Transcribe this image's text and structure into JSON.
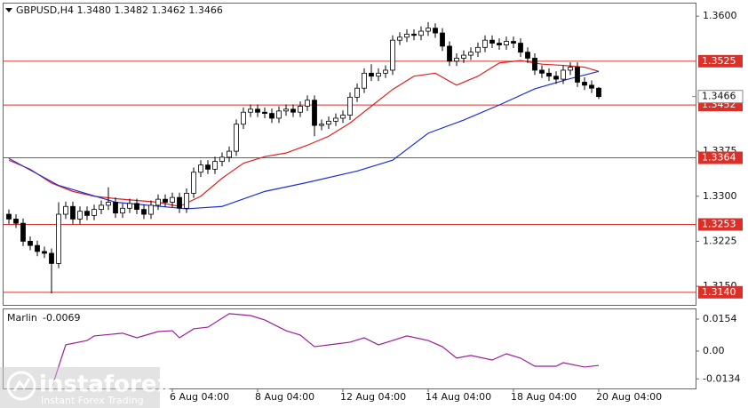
{
  "chart_data": [
    {
      "type": "candlestick",
      "title": "GBPUSD,H4  1.3480 1.3482 1.3462 1.3466",
      "categories": [
        null,
        null,
        null,
        null,
        null,
        null,
        null,
        null,
        null,
        null,
        null,
        null,
        null,
        null,
        null,
        null,
        null,
        null,
        null,
        null,
        null,
        null,
        null,
        "6 Aug 04:00",
        null,
        null,
        null,
        null,
        null,
        null,
        null,
        null,
        null,
        null,
        null,
        "8 Aug 04:00",
        null,
        null,
        null,
        null,
        null,
        null,
        null,
        null,
        null,
        null,
        null,
        "12 Aug 04:00",
        null,
        null,
        null,
        null,
        null,
        null,
        null,
        null,
        null,
        null,
        null,
        "14 Aug 04:00",
        null,
        null,
        null,
        null,
        null,
        null,
        null,
        null,
        null,
        null,
        null,
        "18 Aug 04:00",
        null,
        null,
        null,
        null,
        null,
        null,
        null,
        null,
        null,
        null,
        null,
        "20 Aug 04:00"
      ],
      "open": [
        1.327,
        1.3262,
        1.3255,
        1.3225,
        1.3218,
        1.3208,
        1.3205,
        1.3188,
        1.327,
        1.3283,
        1.3262,
        1.3275,
        1.3268,
        1.3278,
        1.3285,
        1.329,
        1.3272,
        1.328,
        1.3288,
        1.3278,
        1.327,
        1.3285,
        1.3295,
        1.329,
        1.3298,
        1.328,
        1.3305,
        1.334,
        1.3352,
        1.3345,
        1.3358,
        1.3365,
        1.3375,
        1.342,
        1.344,
        1.3445,
        1.344,
        1.3438,
        1.343,
        1.3442,
        1.3445,
        1.344,
        1.345,
        1.346,
        1.3418,
        1.342,
        1.3425,
        1.343,
        1.3435,
        1.3465,
        1.348,
        1.3505,
        1.35,
        1.3505,
        1.351,
        1.356,
        1.3565,
        1.357,
        1.3568,
        1.3575,
        1.358,
        1.3572,
        1.355,
        1.3525,
        1.353,
        1.3535,
        1.354,
        1.3548,
        1.356,
        1.3555,
        1.3552,
        1.3558,
        1.3555,
        1.354,
        1.353,
        1.351,
        1.3505,
        1.35,
        1.3495,
        1.351,
        1.3515,
        1.349,
        1.3485,
        1.348
      ],
      "high": [
        1.3278,
        1.327,
        1.3263,
        1.3233,
        1.3226,
        1.3216,
        1.3213,
        1.329,
        1.3291,
        1.3291,
        1.3283,
        1.3283,
        1.3286,
        1.3293,
        1.3315,
        1.3298,
        1.3288,
        1.3296,
        1.3296,
        1.3286,
        1.3293,
        1.3303,
        1.3303,
        1.3306,
        1.3306,
        1.3313,
        1.3348,
        1.336,
        1.336,
        1.3366,
        1.3373,
        1.3383,
        1.3428,
        1.3448,
        1.3453,
        1.3453,
        1.3448,
        1.3446,
        1.345,
        1.3453,
        1.3453,
        1.3458,
        1.3468,
        1.3468,
        1.3428,
        1.3433,
        1.3438,
        1.3443,
        1.3473,
        1.3488,
        1.3513,
        1.352,
        1.3513,
        1.3518,
        1.3568,
        1.3573,
        1.3578,
        1.3578,
        1.3583,
        1.359,
        1.3588,
        1.358,
        1.3558,
        1.3538,
        1.3543,
        1.3548,
        1.3556,
        1.3568,
        1.3568,
        1.3563,
        1.3566,
        1.3566,
        1.3563,
        1.3548,
        1.3538,
        1.3518,
        1.3513,
        1.3508,
        1.3518,
        1.3523,
        1.3523,
        1.3498,
        1.3493,
        1.3482
      ],
      "low": [
        1.3254,
        1.3247,
        1.3217,
        1.321,
        1.32,
        1.3197,
        1.3138,
        1.318,
        1.3262,
        1.3254,
        1.3254,
        1.326,
        1.326,
        1.327,
        1.3277,
        1.3264,
        1.3264,
        1.3272,
        1.327,
        1.3262,
        1.3262,
        1.3277,
        1.3282,
        1.3282,
        1.3272,
        1.3272,
        1.3297,
        1.3332,
        1.3337,
        1.3337,
        1.335,
        1.3357,
        1.3367,
        1.3412,
        1.3432,
        1.3432,
        1.343,
        1.3422,
        1.3422,
        1.3434,
        1.3432,
        1.3432,
        1.3442,
        1.34,
        1.341,
        1.3412,
        1.3417,
        1.3422,
        1.3427,
        1.3457,
        1.3472,
        1.3492,
        1.3492,
        1.3497,
        1.3502,
        1.3552,
        1.3557,
        1.356,
        1.356,
        1.3567,
        1.3564,
        1.3542,
        1.3517,
        1.3517,
        1.3522,
        1.3527,
        1.3532,
        1.354,
        1.3547,
        1.3544,
        1.3544,
        1.3547,
        1.3532,
        1.3522,
        1.3502,
        1.3497,
        1.3492,
        1.3487,
        1.3487,
        1.3502,
        1.3482,
        1.3477,
        1.3472,
        1.3462
      ],
      "close": [
        1.3262,
        1.3255,
        1.3225,
        1.3218,
        1.3208,
        1.3205,
        1.3188,
        1.327,
        1.3283,
        1.3262,
        1.3275,
        1.3268,
        1.3278,
        1.3285,
        1.329,
        1.3272,
        1.328,
        1.3288,
        1.3278,
        1.327,
        1.3285,
        1.3295,
        1.329,
        1.3298,
        1.328,
        1.3305,
        1.334,
        1.3352,
        1.3345,
        1.3358,
        1.3365,
        1.3375,
        1.342,
        1.344,
        1.3445,
        1.344,
        1.3438,
        1.343,
        1.3442,
        1.3445,
        1.344,
        1.345,
        1.346,
        1.3418,
        1.342,
        1.3425,
        1.343,
        1.3435,
        1.3465,
        1.348,
        1.3505,
        1.35,
        1.3505,
        1.351,
        1.356,
        1.3565,
        1.357,
        1.3568,
        1.3575,
        1.358,
        1.3572,
        1.355,
        1.3525,
        1.353,
        1.3535,
        1.354,
        1.3548,
        1.356,
        1.3555,
        1.3552,
        1.3558,
        1.3555,
        1.354,
        1.353,
        1.351,
        1.3505,
        1.35,
        1.3495,
        1.351,
        1.3515,
        1.349,
        1.3485,
        1.348,
        1.3466
      ],
      "up_color": "#ffffff",
      "down_color": "#000000",
      "edge_color": "#000000",
      "ylim": [
        1.3119,
        1.3621
      ],
      "yticks": [
        {
          "value": 1.36,
          "label": "1.3600"
        },
        1.3375,
        {
          "value": 1.33,
          "label": "1.3300"
        },
        1.3225,
        {
          "value": 1.315,
          "label": "1.3150"
        }
      ],
      "series": [
        {
          "color": "#e0201c",
          "x": [
            0,
            3,
            6,
            9,
            12,
            15,
            18,
            21,
            24,
            27,
            30,
            33,
            36,
            39,
            42,
            45,
            48,
            51,
            54,
            57,
            60,
            63,
            66,
            69,
            72,
            75,
            78,
            81,
            83
          ],
          "values": [
            1.336,
            1.3345,
            1.3322,
            1.3308,
            1.33,
            1.3296,
            1.3293,
            1.329,
            1.3283,
            1.33,
            1.333,
            1.3355,
            1.3366,
            1.3372,
            1.3385,
            1.34,
            1.3422,
            1.345,
            1.3478,
            1.35,
            1.3505,
            1.3485,
            1.35,
            1.3522,
            1.3526,
            1.352,
            1.3518,
            1.3515,
            1.3508
          ]
        },
        {
          "color": "#1f2fd6",
          "x": [
            0,
            7,
            15,
            25,
            30,
            36,
            42,
            49,
            54,
            59,
            64,
            69,
            74,
            79,
            83
          ],
          "values": [
            1.3363,
            1.3318,
            1.329,
            1.3279,
            1.3283,
            1.3308,
            1.3323,
            1.3342,
            1.336,
            1.3405,
            1.3427,
            1.3452,
            1.3479,
            1.3496,
            1.3508
          ]
        }
      ],
      "levels": [
        1.3525,
        1.3452,
        1.3364,
        1.3253,
        {
          "value": 1.314,
          "label": "1.3140"
        }
      ],
      "level_color": "#d9312a",
      "last_price": 1.3466
    },
    {
      "type": "line",
      "title": "Marlin",
      "last_value": -0.0069,
      "color": "#9b1f9b",
      "x": [
        6,
        8,
        11,
        12,
        16,
        18,
        21,
        23,
        24,
        26,
        28,
        31,
        34,
        36,
        39,
        41,
        43,
        46,
        48,
        50,
        52,
        54,
        56,
        59,
        61,
        63,
        65,
        68,
        70,
        72,
        74,
        77,
        78,
        81,
        83
      ],
      "values": [
        -0.018,
        0.003,
        0.0051,
        0.0073,
        0.0086,
        0.0064,
        0.0094,
        0.0098,
        0.0064,
        0.0107,
        0.0115,
        0.018,
        0.0171,
        0.015,
        0.0098,
        0.0077,
        0.0021,
        0.0034,
        0.0043,
        0.0064,
        0.003,
        0.0051,
        0.0073,
        0.0051,
        0.0021,
        -0.0034,
        -0.0021,
        -0.0043,
        -0.0013,
        -0.0034,
        -0.0073,
        -0.0073,
        -0.0056,
        -0.0077,
        -0.0069
      ],
      "ylim": [
        -0.018,
        0.0201
      ],
      "yticks": [
        0.0154,
        {
          "value": 0,
          "label": "0.00"
        },
        -0.0134
      ]
    }
  ],
  "watermark": {
    "brand": "instaforex",
    "tagline": "Instant Forex Trading"
  }
}
